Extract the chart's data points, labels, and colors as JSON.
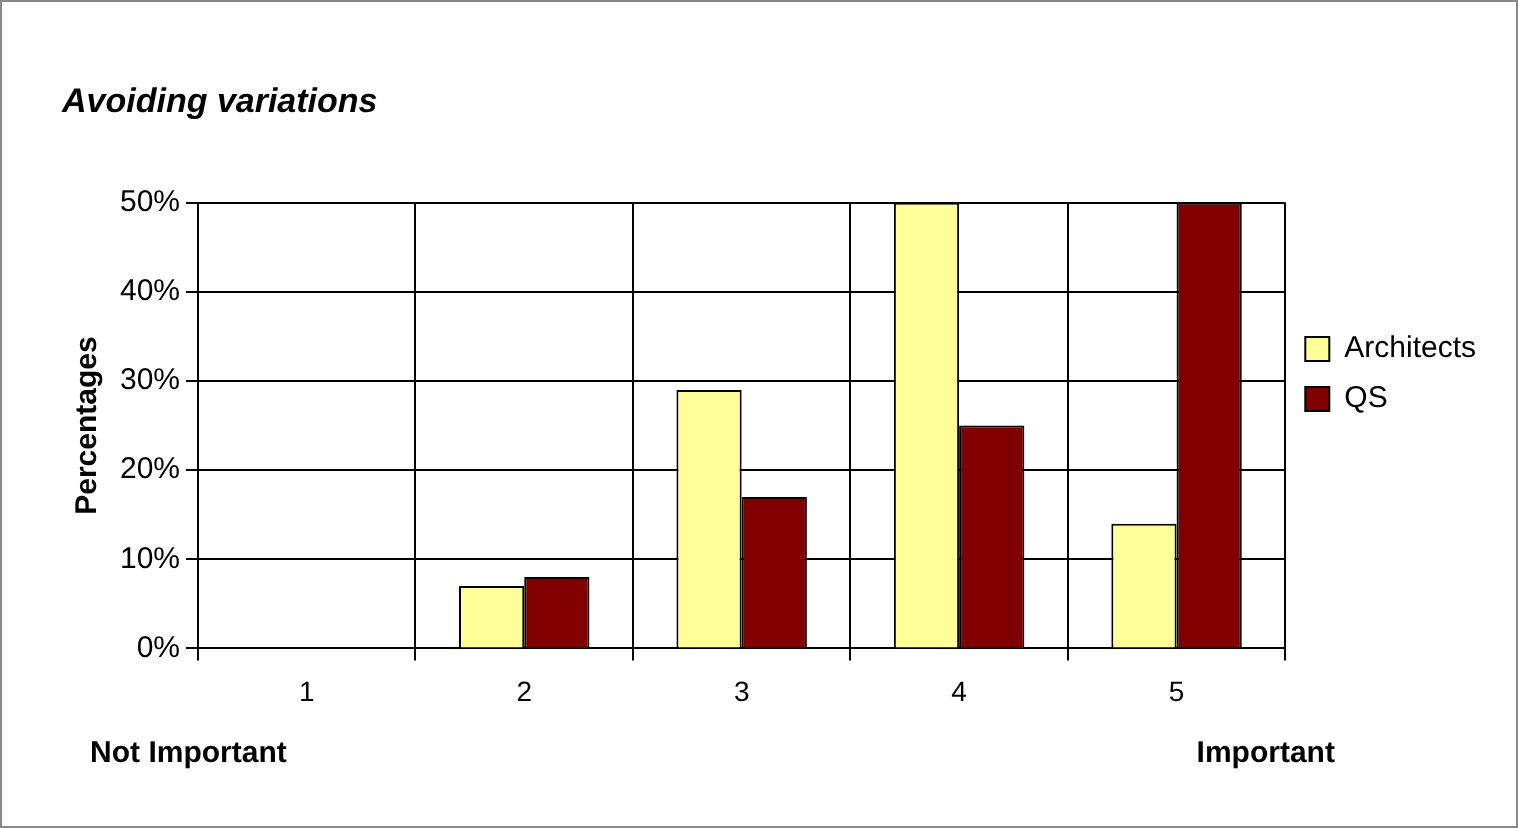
{
  "chart_data": {
    "type": "bar",
    "title": "Avoiding variations",
    "ylabel": "Percentages",
    "categories": [
      "1",
      "2",
      "3",
      "4",
      "5"
    ],
    "series": [
      {
        "name": "Architects",
        "color": "#ffff99",
        "values": [
          0,
          7,
          29,
          50,
          14
        ]
      },
      {
        "name": "QS",
        "color": "#800000",
        "values": [
          0,
          8,
          17,
          25,
          50
        ]
      }
    ],
    "ylim": [
      0,
      50
    ],
    "yticks": [
      {
        "value": 0,
        "label": "0%"
      },
      {
        "value": 10,
        "label": "10%"
      },
      {
        "value": 20,
        "label": "20%"
      },
      {
        "value": 30,
        "label": "30%"
      },
      {
        "value": 40,
        "label": "40%"
      },
      {
        "value": 50,
        "label": "50%"
      }
    ],
    "grid": true,
    "legend": "right",
    "annotations": [
      "Not Important",
      "Important"
    ]
  }
}
